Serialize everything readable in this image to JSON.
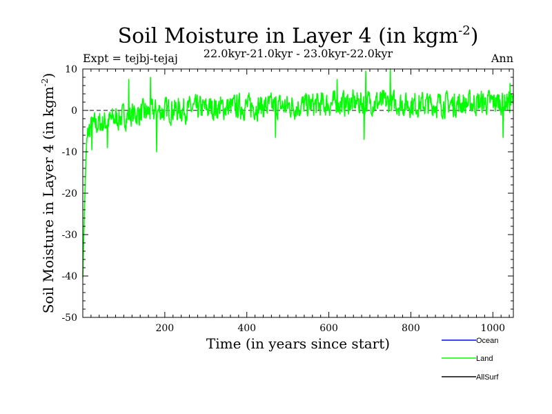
{
  "chart_data": {
    "type": "line",
    "title": "Soil Moisture in Layer 4 (in kgm",
    "title_superscript": "-2",
    "title_suffix": ")",
    "subtitle": "22.0kyr-21.0kyr - 23.0kyr-22.0kyr",
    "experiment_label": "Expt = tejbj-tejaj",
    "season_label": "Ann",
    "xlabel": "Time (in years since start)",
    "ylabel": "Soil Moisture in Layer 4 (in kgm",
    "ylabel_superscript": "-2",
    "ylabel_suffix": ")",
    "xlim": [
      0,
      1050
    ],
    "ylim": [
      -50,
      10
    ],
    "xticks": [
      200,
      400,
      600,
      800,
      1000
    ],
    "yticks": [
      10,
      0,
      -10,
      -20,
      -30,
      -40,
      -50
    ],
    "zero_line": 0,
    "legend_position": "bottom-right",
    "colors": {
      "Ocean": "#0000ff",
      "Land": "#00ff00",
      "AllSurf": "#000000"
    },
    "legend": [
      "Ocean",
      "Land",
      "AllSurf"
    ],
    "series": [
      {
        "name": "Land",
        "color": "#00ff00",
        "keypoints": [
          [
            0,
            -40
          ],
          [
            2,
            -32
          ],
          [
            4,
            -24
          ],
          [
            6,
            -17
          ],
          [
            8,
            -11
          ],
          [
            10,
            -7
          ],
          [
            14,
            -5
          ],
          [
            20,
            -4
          ],
          [
            30,
            -3.5
          ],
          [
            50,
            -3
          ],
          [
            80,
            -2
          ],
          [
            120,
            -1
          ],
          [
            160,
            -0.5
          ],
          [
            200,
            0
          ],
          [
            300,
            0.5
          ],
          [
            400,
            1
          ],
          [
            500,
            1
          ],
          [
            600,
            1.5
          ],
          [
            700,
            2
          ],
          [
            800,
            1.5
          ],
          [
            900,
            1.5
          ],
          [
            1000,
            2
          ],
          [
            1050,
            2
          ]
        ],
        "highlights": [
          [
            22,
            -9.5
          ],
          [
            60,
            -9
          ],
          [
            112,
            7.5
          ],
          [
            165,
            8
          ],
          [
            180,
            -10
          ],
          [
            470,
            -6.5
          ],
          [
            620,
            7.5
          ],
          [
            686,
            -7
          ],
          [
            690,
            9.5
          ],
          [
            750,
            10
          ],
          [
            1025,
            -6.5
          ],
          [
            1042,
            6.5
          ]
        ]
      },
      {
        "name": "Ocean",
        "color": "#0000ff",
        "values": []
      },
      {
        "name": "AllSurf",
        "color": "#000000",
        "values": []
      }
    ]
  }
}
